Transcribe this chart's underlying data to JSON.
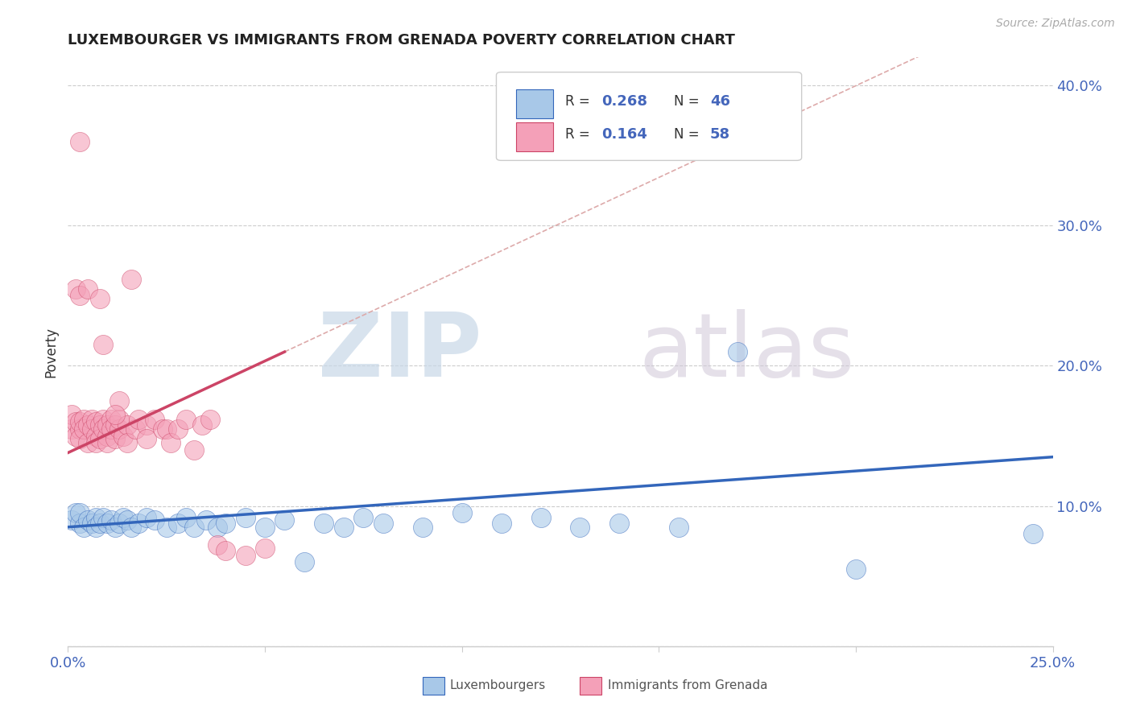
{
  "title": "LUXEMBOURGER VS IMMIGRANTS FROM GRENADA POVERTY CORRELATION CHART",
  "source": "Source: ZipAtlas.com",
  "ylabel": "Poverty",
  "xlim": [
    0.0,
    0.25
  ],
  "ylim": [
    0.0,
    0.42
  ],
  "x_ticks": [
    0.0,
    0.05,
    0.1,
    0.15,
    0.2,
    0.25
  ],
  "y_ticks": [
    0.0,
    0.1,
    0.2,
    0.3,
    0.4
  ],
  "color_blue": "#a8c8e8",
  "color_pink": "#f4a0b8",
  "color_blue_line": "#3366bb",
  "color_pink_line": "#cc4466",
  "color_dashed": "#ddaaaa",
  "blue_line_start_y": 0.085,
  "blue_line_end_y": 0.135,
  "pink_line_start_y": 0.138,
  "pink_line_end_y": 0.21,
  "pink_line_end_x": 0.055,
  "blue_scatter_x": [
    0.001,
    0.002,
    0.003,
    0.003,
    0.004,
    0.005,
    0.006,
    0.007,
    0.007,
    0.008,
    0.009,
    0.01,
    0.011,
    0.012,
    0.013,
    0.014,
    0.015,
    0.016,
    0.018,
    0.02,
    0.022,
    0.025,
    0.028,
    0.03,
    0.032,
    0.035,
    0.038,
    0.04,
    0.045,
    0.05,
    0.055,
    0.06,
    0.065,
    0.07,
    0.075,
    0.08,
    0.09,
    0.1,
    0.11,
    0.12,
    0.13,
    0.14,
    0.155,
    0.17,
    0.2,
    0.245
  ],
  "blue_scatter_y": [
    0.09,
    0.095,
    0.088,
    0.095,
    0.085,
    0.09,
    0.088,
    0.092,
    0.085,
    0.088,
    0.092,
    0.088,
    0.09,
    0.085,
    0.088,
    0.092,
    0.09,
    0.085,
    0.088,
    0.092,
    0.09,
    0.085,
    0.088,
    0.092,
    0.085,
    0.09,
    0.085,
    0.088,
    0.092,
    0.085,
    0.09,
    0.06,
    0.088,
    0.085,
    0.092,
    0.088,
    0.085,
    0.095,
    0.088,
    0.092,
    0.085,
    0.088,
    0.085,
    0.21,
    0.055,
    0.08
  ],
  "pink_scatter_x": [
    0.001,
    0.001,
    0.002,
    0.002,
    0.003,
    0.003,
    0.003,
    0.004,
    0.004,
    0.005,
    0.005,
    0.006,
    0.006,
    0.007,
    0.007,
    0.007,
    0.008,
    0.008,
    0.009,
    0.009,
    0.01,
    0.01,
    0.01,
    0.011,
    0.011,
    0.012,
    0.012,
    0.013,
    0.013,
    0.014,
    0.015,
    0.015,
    0.016,
    0.017,
    0.018,
    0.02,
    0.02,
    0.022,
    0.024,
    0.025,
    0.026,
    0.028,
    0.03,
    0.032,
    0.034,
    0.036,
    0.038,
    0.04,
    0.045,
    0.05,
    0.013,
    0.009,
    0.003,
    0.002,
    0.003,
    0.005,
    0.008,
    0.012
  ],
  "pink_scatter_y": [
    0.155,
    0.165,
    0.16,
    0.15,
    0.155,
    0.16,
    0.148,
    0.162,
    0.155,
    0.158,
    0.145,
    0.162,
    0.155,
    0.16,
    0.15,
    0.145,
    0.158,
    0.148,
    0.162,
    0.155,
    0.15,
    0.158,
    0.145,
    0.162,
    0.155,
    0.158,
    0.148,
    0.155,
    0.162,
    0.15,
    0.158,
    0.145,
    0.262,
    0.155,
    0.162,
    0.158,
    0.148,
    0.162,
    0.155,
    0.155,
    0.145,
    0.155,
    0.162,
    0.14,
    0.158,
    0.162,
    0.072,
    0.068,
    0.065,
    0.07,
    0.175,
    0.215,
    0.36,
    0.255,
    0.25,
    0.255,
    0.248,
    0.165
  ]
}
